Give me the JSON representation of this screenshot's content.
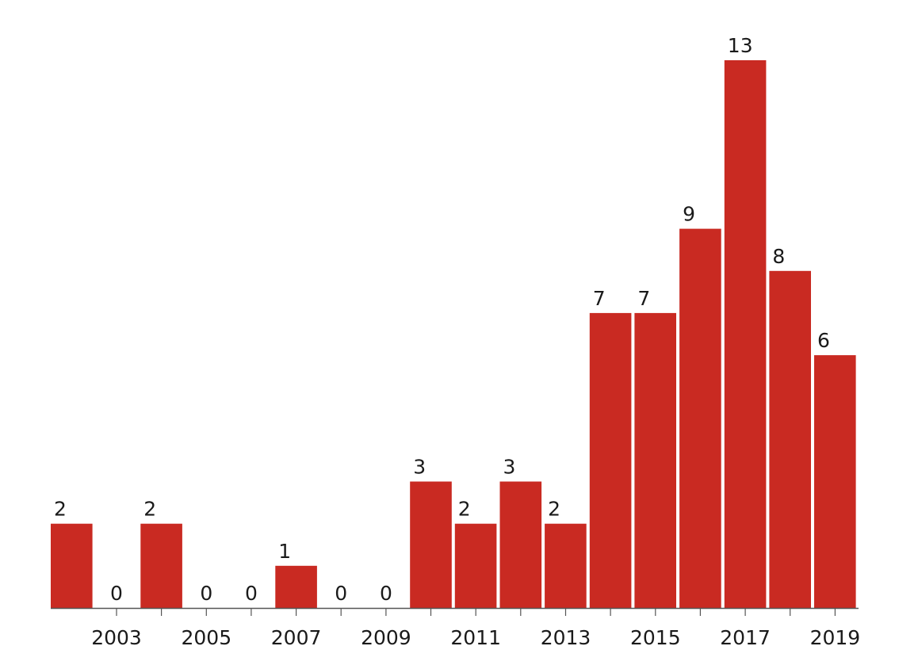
{
  "chart_data": {
    "type": "bar",
    "categories": [
      "2002",
      "2003",
      "2004",
      "2005",
      "2006",
      "2007",
      "2008",
      "2009",
      "2010",
      "2011",
      "2012",
      "2013",
      "2014",
      "2015",
      "2016",
      "2017",
      "2018",
      "2019"
    ],
    "values": [
      2,
      0,
      2,
      0,
      0,
      1,
      0,
      0,
      3,
      2,
      3,
      2,
      7,
      7,
      9,
      13,
      8,
      6
    ],
    "x_tick_labels": [
      "2003",
      "2005",
      "2007",
      "2009",
      "2011",
      "2013",
      "2015",
      "2017",
      "2019"
    ],
    "data_labels": true,
    "ylim": [
      0,
      13
    ],
    "grid": false,
    "legend": "none",
    "title": "",
    "xlabel": "",
    "ylabel": "",
    "colors": {
      "bar": "#c92a22",
      "axis": "#555555",
      "text": "#1a1a1a"
    }
  }
}
